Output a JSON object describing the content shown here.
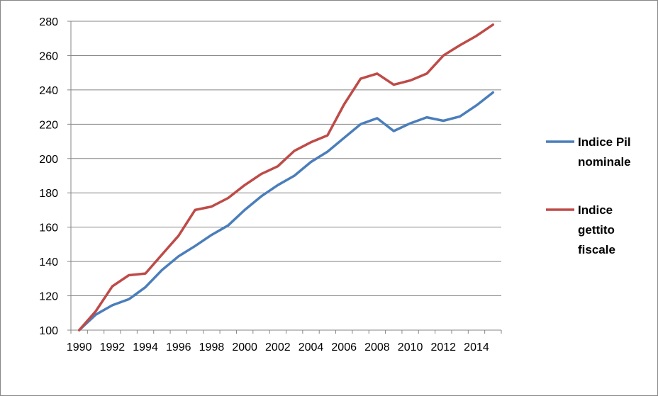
{
  "chart_data": {
    "type": "line",
    "title": "",
    "xlabel": "",
    "ylabel": "",
    "ylim": [
      100,
      280
    ],
    "y_ticks": [
      100,
      120,
      140,
      160,
      180,
      200,
      220,
      240,
      260,
      280
    ],
    "x": [
      1990,
      1991,
      1992,
      1993,
      1994,
      1995,
      1996,
      1997,
      1998,
      1999,
      2000,
      2001,
      2002,
      2003,
      2004,
      2005,
      2006,
      2007,
      2008,
      2009,
      2010,
      2011,
      2012,
      2013,
      2014,
      2015
    ],
    "x_tick_labels": [
      "1990",
      "1992",
      "1994",
      "1996",
      "1998",
      "2000",
      "2002",
      "2004",
      "2006",
      "2008",
      "2010",
      "2012",
      "2014"
    ],
    "grid": "horizontal",
    "legend_position": "right",
    "series": [
      {
        "name": "Indice Pil nominale",
        "legend_lines": [
          "Indice Pil",
          "nominale"
        ],
        "color": "#4a7ebb",
        "values": [
          100,
          109,
          114.5,
          118,
          125,
          135,
          143,
          149,
          155.5,
          161,
          170,
          178,
          184.5,
          190,
          198,
          204,
          212,
          220,
          223.5,
          216,
          220.5,
          224,
          222,
          224.5,
          231,
          238.5
        ]
      },
      {
        "name": "Indice gettito fiscale",
        "legend_lines": [
          "Indice",
          "gettito",
          "fiscale"
        ],
        "color": "#be4b48",
        "values": [
          100,
          111,
          125.5,
          132,
          133,
          144,
          155,
          170,
          172,
          177,
          184.5,
          191,
          195.5,
          204.5,
          209.5,
          213.5,
          231.5,
          246.5,
          249.5,
          243,
          245.5,
          249.5,
          260,
          266,
          271.5,
          278
        ]
      }
    ]
  }
}
